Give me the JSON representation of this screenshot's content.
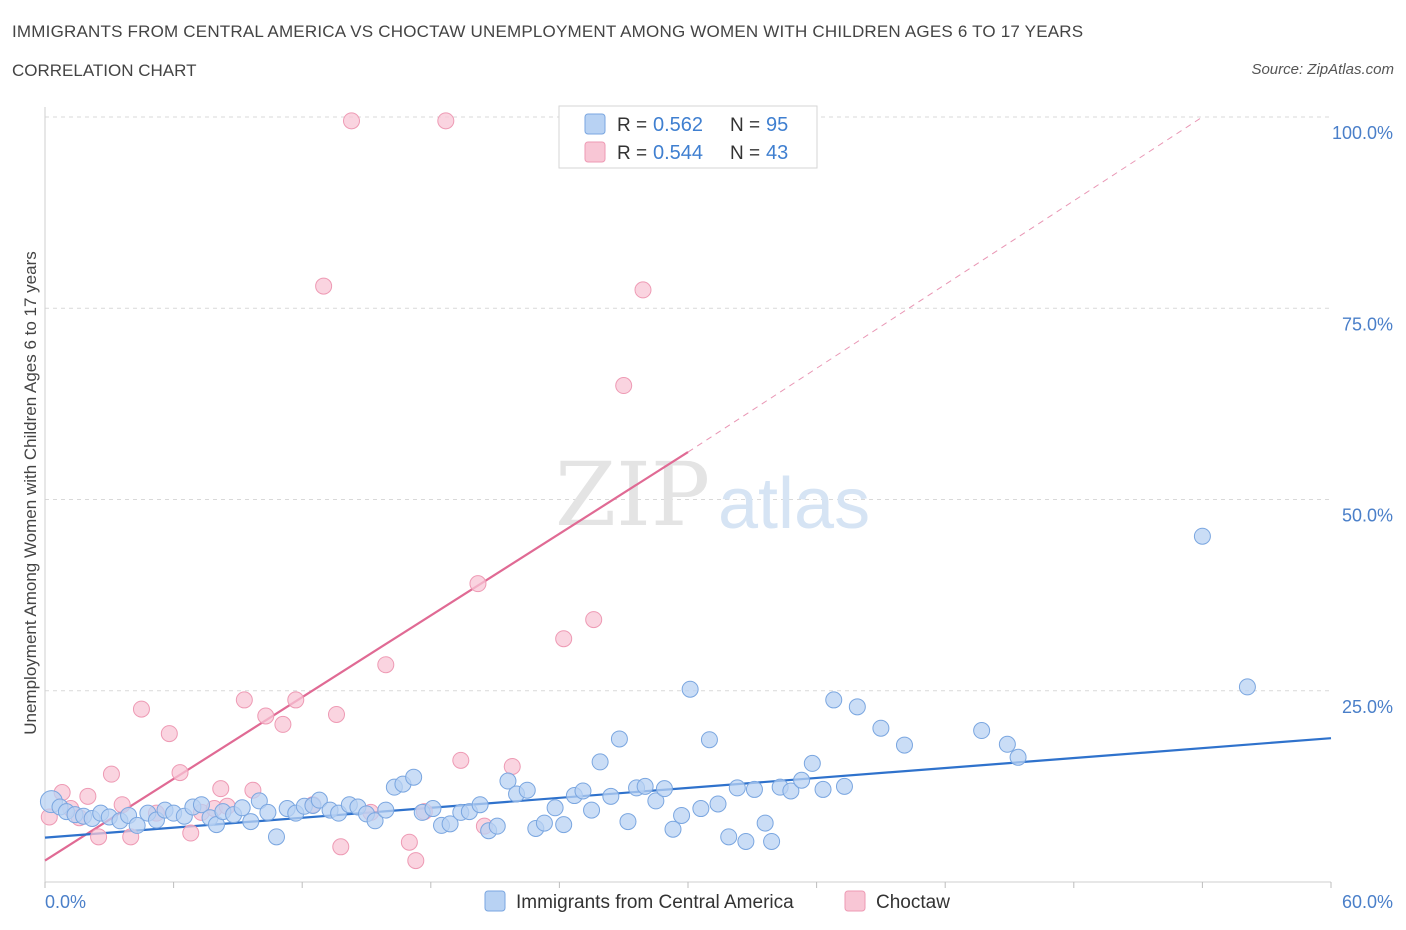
{
  "header": {
    "title": "IMMIGRANTS FROM CENTRAL AMERICA VS CHOCTAW UNEMPLOYMENT AMONG WOMEN WITH CHILDREN AGES 6 TO 17 YEARS",
    "subtitle": "CORRELATION CHART",
    "source": "Source: ZipAtlas.com"
  },
  "legend": {
    "r_label": "R =",
    "n_label": "N =",
    "entries": [
      {
        "r": "0.562",
        "n": "95"
      },
      {
        "r": "0.544",
        "n": "43"
      }
    ]
  },
  "watermark": {
    "zip": "ZIP",
    "atlas": "atlas"
  },
  "colors": {
    "blue_fill": "#b8d2f3",
    "blue_stroke": "#7aa6e0",
    "blue_line": "#2f72cc",
    "pink_fill": "#f8c6d5",
    "pink_stroke": "#ee9ab4",
    "pink_line": "#e06a94",
    "grid": "#d9d9d9",
    "axis_text": "#4a7fc9"
  },
  "chart_data": {
    "type": "scatter",
    "title": "IMMIGRANTS FROM CENTRAL AMERICA VS CHOCTAW UNEMPLOYMENT AMONG WOMEN WITH CHILDREN AGES 6 TO 17 YEARS",
    "ylabel": "Unemployment Among Women with Children Ages 6 to 17 years",
    "xlabel": "",
    "xlim": [
      0,
      60
    ],
    "ylim": [
      0,
      100
    ],
    "x_ticks": [
      "0.0%",
      "60.0%"
    ],
    "y_ticks": [
      {
        "value": 25,
        "label": "25.0%"
      },
      {
        "value": 50,
        "label": "50.0%"
      },
      {
        "value": 75,
        "label": "75.0%"
      },
      {
        "value": 100,
        "label": "100.0%"
      }
    ],
    "grid": true,
    "legend_position": "top-center",
    "series": [
      {
        "name": "Immigrants from Central America",
        "color": "blue",
        "trend": {
          "x": [
            0,
            60
          ],
          "y": [
            5.8,
            18.8
          ]
        },
        "points": [
          [
            0.3,
            10.5
          ],
          [
            0.7,
            9.8
          ],
          [
            1.0,
            9.2
          ],
          [
            1.4,
            8.8
          ],
          [
            1.8,
            8.6
          ],
          [
            2.2,
            8.3
          ],
          [
            2.6,
            9.0
          ],
          [
            3.0,
            8.5
          ],
          [
            3.5,
            8.0
          ],
          [
            3.9,
            8.7
          ],
          [
            4.3,
            7.4
          ],
          [
            4.8,
            9.0
          ],
          [
            5.2,
            8.1
          ],
          [
            5.6,
            9.4
          ],
          [
            6.0,
            9.0
          ],
          [
            6.5,
            8.6
          ],
          [
            6.9,
            9.8
          ],
          [
            7.3,
            10.1
          ],
          [
            7.7,
            8.4
          ],
          [
            8.0,
            7.5
          ],
          [
            8.3,
            9.2
          ],
          [
            8.8,
            8.8
          ],
          [
            9.2,
            9.7
          ],
          [
            9.6,
            7.9
          ],
          [
            10.0,
            10.6
          ],
          [
            10.4,
            9.1
          ],
          [
            10.8,
            5.9
          ],
          [
            11.3,
            9.6
          ],
          [
            11.7,
            9.0
          ],
          [
            12.1,
            9.9
          ],
          [
            12.5,
            10.0
          ],
          [
            12.8,
            10.7
          ],
          [
            13.3,
            9.4
          ],
          [
            13.7,
            9.0
          ],
          [
            14.2,
            10.1
          ],
          [
            14.6,
            9.8
          ],
          [
            15.0,
            8.9
          ],
          [
            15.4,
            8.0
          ],
          [
            15.9,
            9.4
          ],
          [
            16.3,
            12.4
          ],
          [
            16.7,
            12.8
          ],
          [
            17.2,
            13.7
          ],
          [
            17.6,
            9.1
          ],
          [
            18.1,
            9.6
          ],
          [
            18.5,
            7.4
          ],
          [
            18.9,
            7.6
          ],
          [
            19.4,
            9.1
          ],
          [
            19.8,
            9.2
          ],
          [
            20.3,
            10.1
          ],
          [
            20.7,
            6.7
          ],
          [
            21.1,
            7.3
          ],
          [
            21.6,
            13.2
          ],
          [
            22.0,
            11.5
          ],
          [
            22.5,
            12.0
          ],
          [
            22.9,
            7.0
          ],
          [
            23.3,
            7.7
          ],
          [
            23.8,
            9.7
          ],
          [
            24.2,
            7.5
          ],
          [
            24.7,
            11.3
          ],
          [
            25.1,
            11.9
          ],
          [
            25.5,
            9.4
          ],
          [
            25.9,
            15.7
          ],
          [
            26.4,
            11.2
          ],
          [
            26.8,
            18.7
          ],
          [
            27.2,
            7.9
          ],
          [
            27.6,
            12.3
          ],
          [
            28.0,
            12.5
          ],
          [
            28.5,
            10.6
          ],
          [
            28.9,
            12.2
          ],
          [
            29.3,
            6.9
          ],
          [
            29.7,
            8.7
          ],
          [
            30.1,
            25.2
          ],
          [
            30.6,
            9.6
          ],
          [
            31.0,
            18.6
          ],
          [
            31.4,
            10.2
          ],
          [
            31.9,
            5.9
          ],
          [
            32.3,
            12.3
          ],
          [
            32.7,
            5.3
          ],
          [
            33.1,
            12.1
          ],
          [
            33.6,
            7.7
          ],
          [
            33.9,
            5.3
          ],
          [
            34.3,
            12.4
          ],
          [
            34.8,
            11.9
          ],
          [
            35.3,
            13.3
          ],
          [
            35.8,
            15.5
          ],
          [
            36.3,
            12.1
          ],
          [
            36.8,
            23.8
          ],
          [
            37.3,
            12.5
          ],
          [
            37.9,
            22.9
          ],
          [
            39.0,
            20.1
          ],
          [
            40.1,
            17.9
          ],
          [
            43.7,
            19.8
          ],
          [
            44.9,
            18.0
          ],
          [
            45.4,
            16.3
          ],
          [
            54.0,
            45.2
          ],
          [
            56.1,
            25.5
          ]
        ]
      },
      {
        "name": "Choctaw",
        "color": "pink",
        "trend": {
          "x": [
            0,
            30
          ],
          "y": [
            2.8,
            56.2
          ]
        },
        "trend_dashed": {
          "x": [
            30,
            54
          ],
          "y": [
            56.2,
            100
          ]
        },
        "points": [
          [
            0.2,
            8.5
          ],
          [
            0.8,
            11.7
          ],
          [
            1.2,
            9.6
          ],
          [
            1.6,
            8.4
          ],
          [
            2.0,
            11.2
          ],
          [
            2.5,
            5.9
          ],
          [
            3.1,
            14.1
          ],
          [
            3.6,
            10.1
          ],
          [
            4.0,
            5.9
          ],
          [
            4.5,
            22.6
          ],
          [
            5.2,
            9.0
          ],
          [
            5.8,
            19.4
          ],
          [
            6.3,
            14.3
          ],
          [
            6.8,
            6.4
          ],
          [
            7.3,
            9.1
          ],
          [
            7.9,
            9.6
          ],
          [
            8.2,
            12.2
          ],
          [
            8.5,
            9.9
          ],
          [
            9.3,
            23.8
          ],
          [
            9.7,
            12.0
          ],
          [
            10.3,
            21.7
          ],
          [
            11.1,
            20.6
          ],
          [
            11.7,
            23.8
          ],
          [
            12.5,
            10.1
          ],
          [
            13.0,
            77.9
          ],
          [
            13.6,
            21.9
          ],
          [
            13.8,
            4.6
          ],
          [
            14.3,
            99.5
          ],
          [
            15.2,
            9.1
          ],
          [
            15.9,
            28.4
          ],
          [
            17.0,
            5.2
          ],
          [
            17.3,
            2.8
          ],
          [
            17.7,
            9.2
          ],
          [
            18.7,
            99.5
          ],
          [
            19.4,
            15.9
          ],
          [
            20.2,
            39.0
          ],
          [
            20.5,
            7.3
          ],
          [
            21.8,
            15.1
          ],
          [
            24.2,
            31.8
          ],
          [
            25.6,
            34.3
          ],
          [
            27.0,
            64.9
          ],
          [
            27.9,
            77.4
          ],
          [
            30.0,
            99.8
          ]
        ]
      }
    ]
  },
  "bottom_legend": {
    "items": [
      "Immigrants from Central America",
      "Choctaw"
    ]
  }
}
